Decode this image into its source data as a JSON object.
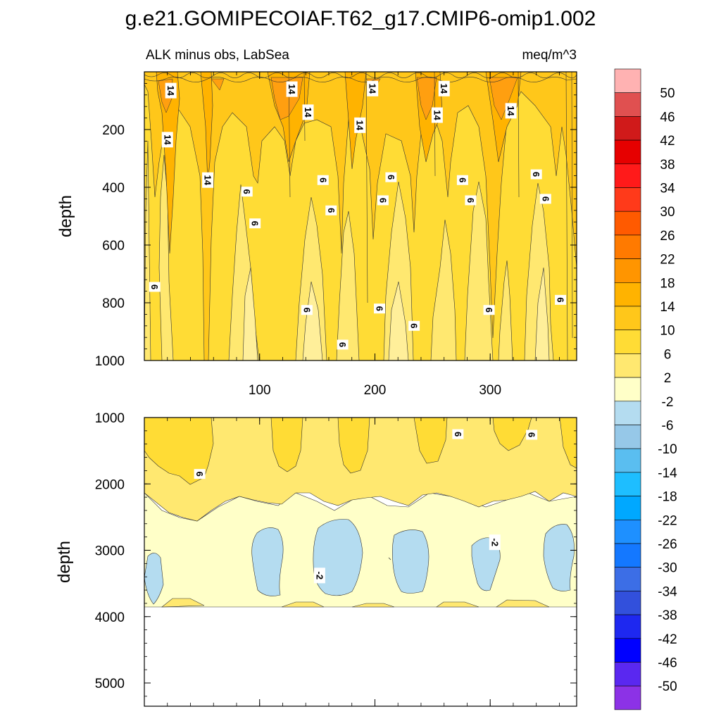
{
  "chart_data": {
    "type": "heatmap",
    "title": "g.e21.GOMIPECOIAF.T62_g17.CMIP6-omip1.002",
    "subtitle_left": "ALK minus obs, LabSea",
    "subtitle_right": "meq/m^3",
    "xlabel": "",
    "ylabel": "depth",
    "xlim": [
      0,
      375
    ],
    "xticks": [
      "100",
      "200",
      "300"
    ],
    "xtick_values": [
      100,
      200,
      300
    ],
    "panels": [
      {
        "name": "upper",
        "ylim": [
          0,
          1000
        ],
        "yticks": [
          "200",
          "400",
          "600",
          "800",
          "1000"
        ],
        "ytick_values": [
          200,
          400,
          600,
          800,
          1000
        ],
        "contour_labels": [
          {
            "text": "14",
            "x": 23,
            "y": 65
          },
          {
            "text": "14",
            "x": 128,
            "y": 60
          },
          {
            "text": "14",
            "x": 198,
            "y": 58
          },
          {
            "text": "14",
            "x": 260,
            "y": 58
          },
          {
            "text": "14",
            "x": 142,
            "y": 140
          },
          {
            "text": "14",
            "x": 187,
            "y": 185
          },
          {
            "text": "14",
            "x": 254,
            "y": 150
          },
          {
            "text": "14",
            "x": 318,
            "y": 135
          },
          {
            "text": "14",
            "x": 20,
            "y": 235
          },
          {
            "text": "14",
            "x": 55,
            "y": 375
          },
          {
            "text": "6",
            "x": 89,
            "y": 415
          },
          {
            "text": "6",
            "x": 96,
            "y": 525
          },
          {
            "text": "6",
            "x": 155,
            "y": 375
          },
          {
            "text": "6",
            "x": 162,
            "y": 480
          },
          {
            "text": "6",
            "x": 214,
            "y": 365
          },
          {
            "text": "6",
            "x": 207,
            "y": 445
          },
          {
            "text": "6",
            "x": 276,
            "y": 375
          },
          {
            "text": "6",
            "x": 283,
            "y": 445
          },
          {
            "text": "6",
            "x": 340,
            "y": 355
          },
          {
            "text": "6",
            "x": 348,
            "y": 440
          },
          {
            "text": "6",
            "x": 9,
            "y": 745
          },
          {
            "text": "6",
            "x": 141,
            "y": 825
          },
          {
            "text": "6",
            "x": 204,
            "y": 820
          },
          {
            "text": "6",
            "x": 234,
            "y": 880
          },
          {
            "text": "6",
            "x": 299,
            "y": 825
          },
          {
            "text": "6",
            "x": 361,
            "y": 790
          },
          {
            "text": "6",
            "x": 172,
            "y": 945
          }
        ]
      },
      {
        "name": "lower",
        "ylim": [
          1000,
          5350
        ],
        "yticks": [
          "1000",
          "2000",
          "3000",
          "4000",
          "5000"
        ],
        "ytick_values": [
          1000,
          2000,
          3000,
          4000,
          5000
        ],
        "contour_labels": [
          {
            "text": "6",
            "x": 272,
            "y": 1250
          },
          {
            "text": "6",
            "x": 336,
            "y": 1260
          },
          {
            "text": "6",
            "x": 48,
            "y": 1850
          },
          {
            "text": "-2",
            "x": 152,
            "y": 3380
          },
          {
            "text": "-2",
            "x": 304,
            "y": 2880
          }
        ]
      }
    ],
    "colorbar": {
      "label_values": [
        "50",
        "46",
        "42",
        "38",
        "34",
        "30",
        "26",
        "22",
        "18",
        "14",
        "10",
        "6",
        "2",
        "-2",
        "-6",
        "-10",
        "-14",
        "-18",
        "-22",
        "-26",
        "-30",
        "-34",
        "-38",
        "-42",
        "-46",
        "-50"
      ],
      "colors": [
        "#ffb2b2",
        "#e05050",
        "#d01a1a",
        "#e60000",
        "#ff1a1a",
        "#ff3a1a",
        "#ff5a00",
        "#ff7a00",
        "#ff9500",
        "#ffb300",
        "#ffc71a",
        "#ffdc35",
        "#ffe870",
        "#ffffc8",
        "#b4dcf0",
        "#96c8e8",
        "#5abef0",
        "#1ebeff",
        "#00a8ff",
        "#1e90ff",
        "#1478ff",
        "#3c6ee6",
        "#3250dc",
        "#1e28f0",
        "#0000ff",
        "#5a28f0",
        "#8c32e6"
      ]
    },
    "level_colors": {
      "lt_m6": "#b4dcf0",
      "m2_2": "#ffffc8",
      "l2_6": "#ffe870",
      "l6_10": "#ffdc35",
      "l10_14": "#ffc71a",
      "l14_18": "#ffb300",
      "l18_22": "#ff9500"
    }
  }
}
